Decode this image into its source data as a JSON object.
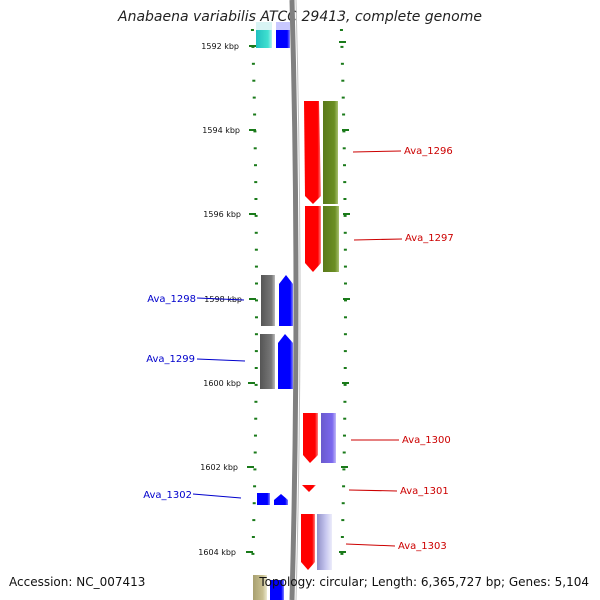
{
  "title": "Anabaena variabilis ATCC 29413, complete genome",
  "footer": {
    "accession": "Accession: NC_007413",
    "summary": "Topology: circular; Length: 6,365,727 bp; Genes: 5,104"
  },
  "colors": {
    "tick": "#1a7a1a",
    "backbone": "#808080",
    "forward_label": "#0000cc",
    "reverse_label": "#cc0000",
    "cds_forward": "#0000ff",
    "cds_reverse": "#ff0000",
    "cog_olive": "#6b8e23",
    "cog_grey": "#6e6e6e",
    "cog_purple": "#7b68ee",
    "cog_cyan": "#40e0d0",
    "cog_lavender": "#c8c8f0",
    "cog_tan": "#c8c090"
  },
  "kbp_labels": [
    "1592 kbp",
    "1594 kbp",
    "1596 kbp",
    "1598 kbp",
    "1600 kbp",
    "1602 kbp",
    "1604 kbp"
  ],
  "genes_forward": [
    {
      "label": "Ava_1298",
      "cog": "grey"
    },
    {
      "label": "Ava_1299",
      "cog": "grey"
    },
    {
      "label": "Ava_1302",
      "cog": "none"
    }
  ],
  "genes_reverse": [
    {
      "label": "Ava_1296",
      "cog": "olive"
    },
    {
      "label": "Ava_1297",
      "cog": "olive"
    },
    {
      "label": "Ava_1300",
      "cog": "purple"
    },
    {
      "label": "Ava_1301",
      "cog": "none"
    },
    {
      "label": "Ava_1303",
      "cog": "lavender"
    }
  ]
}
